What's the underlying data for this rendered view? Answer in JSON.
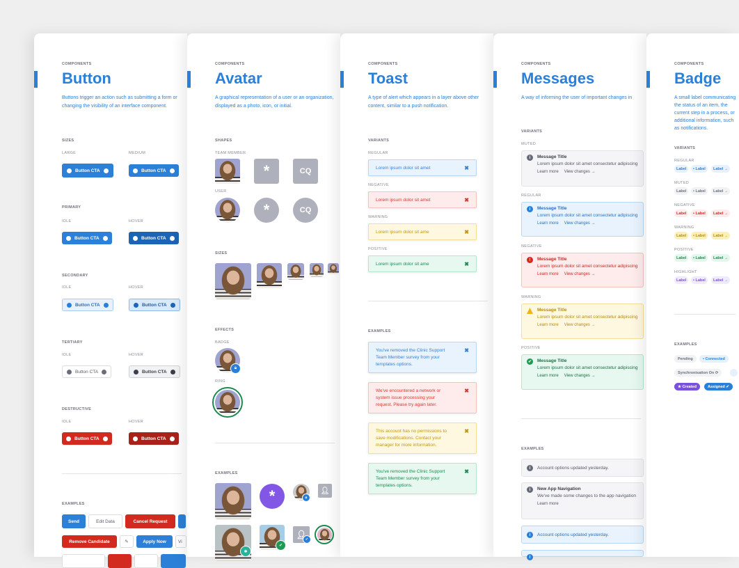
{
  "kicker": "COMPONENTS",
  "common": {
    "idle": "IDLE",
    "hover": "HOVER",
    "examples": "EXAMPLES",
    "variants": "VARIANTS"
  },
  "button": {
    "title": "Button",
    "description": "Buttons trigger an action such as submitting a form or changing the visibility of an interface component.",
    "sizes": "SIZES",
    "large": "LARGE",
    "medium": "MEDIUM",
    "primary": "PRIMARY",
    "secondary": "SECONDARY",
    "tertiary": "TERTIARY",
    "destructive": "DESTRUCTIVE",
    "cta": "Button CTA",
    "examples": {
      "send": "Send",
      "edit": "Edit Data",
      "cancel": "Cancel Request",
      "remove": "Remove Candidate",
      "apply": "Apply Now",
      "view": "Vi"
    }
  },
  "avatar": {
    "title": "Avatar",
    "description": "A graphical representation of a user or an organization, displayed as a photo, icon, or initial.",
    "shapes": "SHAPES",
    "team_member": "TEAM MEMBER",
    "user": "USER",
    "sizes": "SIZES",
    "effects": "EFFECTS",
    "badge": "BADGE",
    "ring": "RING",
    "initials": "CQ",
    "icon_glyph": "*"
  },
  "toast": {
    "title": "Toast",
    "description": "A type of alert which appears in a layer above other content, similar to a push notification.",
    "regular": "REGULAR",
    "negative": "NEGATIVE",
    "warning": "WARNING",
    "positive": "POSITIVE",
    "variants": [
      "Lorem ipsum dolor sit amet",
      "Lorem ipsum dolor sit amet",
      "Lorem ipsum dolor sit ame",
      "Lorem ipsum dolor sit ame"
    ],
    "examples": [
      "You've removed the Clinic Support Team Member survey from your templates options.",
      "We've encountered a network or system issue processing your request. Please try again later.",
      "This account has no permissions to save modifications. Contact your manager for more information.",
      "You've removed the Clinic Support Team Member survey from your templates options."
    ],
    "close": "✖"
  },
  "messages": {
    "title": "Messages",
    "description": "A way of informing the user of important changes in",
    "muted": "MUTED",
    "regular": "REGULAR",
    "negative": "NEGATIVE",
    "warning": "WARNING",
    "positive": "POSITIVE",
    "msg_title": "Message Title",
    "msg_body": "Lorem ipsum dolor sit amet consectetur adipiscing",
    "learn_more": "Learn more",
    "view_changes": "View changes →",
    "ex1": "Account options updated yesterday.",
    "ex2_title": "New App Navigation",
    "ex2_body": "We've made some changes to the app navigation",
    "ex3": "Account options updated yesterday."
  },
  "badge": {
    "title": "Badge",
    "description": "A small label communicating the status of an item, the current step in a process, or additional information, such as notifications.",
    "regular": "REGULAR",
    "muted": "MUTED",
    "negative": "NEGATIVE",
    "warning": "WARNING",
    "positive": "POSITIVE",
    "highlight": "HIGHLIGHT",
    "label": "Label",
    "label_dot": "• Label",
    "label_arrow": "Label →",
    "pending": "Pending",
    "connected": "• Connected",
    "sync": "Synchronisation On ⟳",
    "created": "★ Created",
    "assigned": "Assigned ✔"
  },
  "colors": {
    "primary": "#2a7fd9",
    "destructive": "#d32a1f",
    "positive": "#1f9a55",
    "warning": "#f0b31a",
    "highlight": "#7b4fe0"
  }
}
